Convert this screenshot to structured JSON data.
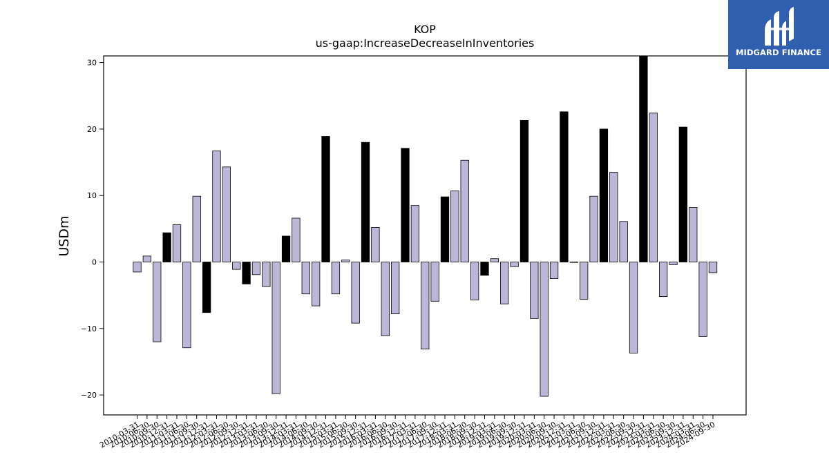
{
  "chart_data": {
    "type": "bar",
    "title": "KOP",
    "subtitle": "us-gaap:IncreaseDecreaseInInventories",
    "ylabel": "USDm",
    "xlabel": "",
    "ylim": [
      -23,
      31
    ],
    "yticks": [
      -20,
      -10,
      0,
      10,
      20,
      30
    ],
    "ytick_labels": [
      "−20",
      "−10",
      "0",
      "10",
      "20",
      "30"
    ],
    "grid": false,
    "colors": {
      "regular": "#bcb6d8",
      "annual": "#000000",
      "edge": "#000000"
    },
    "categories": [
      "2010-03-31",
      "2010-06-30",
      "2010-09-30",
      "2010-12-31",
      "2011-03-31",
      "2011-06-30",
      "2011-09-30",
      "2011-12-31",
      "2012-03-31",
      "2012-06-30",
      "2012-09-30",
      "2012-12-31",
      "2013-03-31",
      "2013-06-30",
      "2013-09-30",
      "2013-12-31",
      "2014-03-31",
      "2014-06-30",
      "2014-09-30",
      "2014-12-31",
      "2015-03-31",
      "2015-06-30",
      "2015-09-30",
      "2015-12-31",
      "2016-03-31",
      "2016-06-30",
      "2016-09-30",
      "2016-12-31",
      "2017-03-31",
      "2017-06-30",
      "2017-09-30",
      "2017-12-31",
      "2018-03-31",
      "2018-06-30",
      "2018-09-30",
      "2018-12-31",
      "2019-03-31",
      "2019-06-30",
      "2019-09-30",
      "2019-12-31",
      "2020-03-31",
      "2020-06-30",
      "2020-09-30",
      "2020-12-31",
      "2021-03-31",
      "2021-06-30",
      "2021-09-30",
      "2021-12-31",
      "2022-03-31",
      "2022-06-30",
      "2022-09-30",
      "2022-12-31",
      "2023-03-31",
      "2023-06-30",
      "2023-09-30",
      "2023-12-31",
      "2024-03-31",
      "2024-06-30",
      "2024-09-30"
    ],
    "values": [
      -1.5,
      0.9,
      -12.0,
      4.4,
      5.6,
      -12.9,
      9.9,
      -7.6,
      16.7,
      14.3,
      -1.1,
      -3.3,
      -1.9,
      -3.7,
      -19.8,
      3.9,
      6.6,
      -4.8,
      -6.6,
      18.9,
      -4.8,
      0.3,
      -9.2,
      18.0,
      5.2,
      -11.1,
      -7.8,
      17.1,
      8.5,
      -13.1,
      -5.9,
      9.8,
      10.7,
      15.3,
      -5.7,
      -2.0,
      0.5,
      -6.3,
      -0.7,
      21.3,
      -8.5,
      -20.2,
      -2.5,
      22.6,
      0.0,
      -5.6,
      9.9,
      20.0,
      13.5,
      6.1,
      -13.7,
      32.5,
      22.4,
      -5.2,
      -0.4,
      20.3,
      8.2,
      -11.2,
      -1.6
    ],
    "annual": [
      false,
      false,
      false,
      true,
      false,
      false,
      false,
      true,
      false,
      false,
      false,
      true,
      false,
      false,
      false,
      true,
      false,
      false,
      false,
      true,
      false,
      false,
      false,
      true,
      false,
      false,
      false,
      true,
      false,
      false,
      false,
      true,
      false,
      false,
      false,
      true,
      false,
      false,
      false,
      true,
      false,
      false,
      false,
      true,
      false,
      false,
      false,
      true,
      false,
      false,
      false,
      true,
      false,
      false,
      false,
      true,
      false,
      false,
      false
    ]
  },
  "logo": {
    "text": "MIDGARD FINANCE"
  }
}
